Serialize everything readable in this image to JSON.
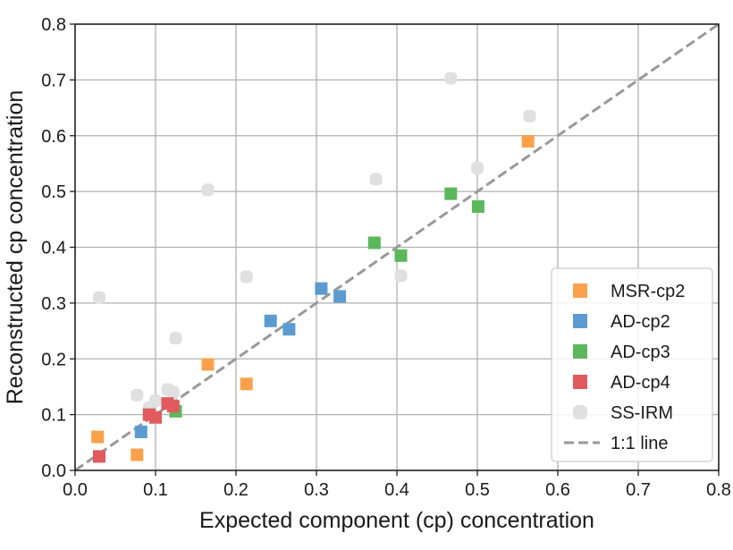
{
  "chart_data": {
    "type": "scatter",
    "title": "",
    "xlabel": "Expected component (cp) concentration",
    "ylabel": "Reconstructed cp concentration",
    "xlim": [
      0.0,
      0.8
    ],
    "ylim": [
      0.0,
      0.8
    ],
    "xticks": [
      "0.0",
      "0.1",
      "0.2",
      "0.3",
      "0.4",
      "0.5",
      "0.6",
      "0.7",
      "0.8"
    ],
    "yticks": [
      "0.0",
      "0.1",
      "0.2",
      "0.3",
      "0.4",
      "0.5",
      "0.6",
      "0.7",
      "0.8"
    ],
    "grid": true,
    "legend_position": "bottom-right",
    "reference_line": {
      "name": "1:1 line",
      "color": "#999999",
      "from": [
        0.0,
        0.0
      ],
      "to": [
        0.8,
        0.8
      ]
    },
    "series": [
      {
        "name": "SS-IRM",
        "color": "#e0e0e0",
        "marker": "circle",
        "points": [
          [
            0.03,
            0.31
          ],
          [
            0.077,
            0.135
          ],
          [
            0.092,
            0.112
          ],
          [
            0.1,
            0.125
          ],
          [
            0.115,
            0.145
          ],
          [
            0.122,
            0.14
          ],
          [
            0.125,
            0.237
          ],
          [
            0.165,
            0.503
          ],
          [
            0.213,
            0.347
          ],
          [
            0.374,
            0.522
          ],
          [
            0.405,
            0.349
          ],
          [
            0.467,
            0.703
          ],
          [
            0.5,
            0.542
          ],
          [
            0.565,
            0.635
          ]
        ]
      },
      {
        "name": "MSR-cp2",
        "color": "#fba14b",
        "marker": "square",
        "points": [
          [
            0.028,
            0.06
          ],
          [
            0.077,
            0.028
          ],
          [
            0.165,
            0.19
          ],
          [
            0.213,
            0.155
          ],
          [
            0.563,
            0.59
          ]
        ]
      },
      {
        "name": "AD-cp2",
        "color": "#5b9bd1",
        "marker": "square",
        "points": [
          [
            0.082,
            0.069
          ],
          [
            0.243,
            0.268
          ],
          [
            0.266,
            0.253
          ],
          [
            0.306,
            0.326
          ],
          [
            0.329,
            0.312
          ]
        ]
      },
      {
        "name": "AD-cp3",
        "color": "#5cb85c",
        "marker": "square",
        "points": [
          [
            0.125,
            0.106
          ],
          [
            0.372,
            0.408
          ],
          [
            0.405,
            0.385
          ],
          [
            0.467,
            0.496
          ],
          [
            0.501,
            0.473
          ]
        ]
      },
      {
        "name": "AD-cp4",
        "color": "#e05a5e",
        "marker": "square",
        "points": [
          [
            0.03,
            0.025
          ],
          [
            0.092,
            0.1
          ],
          [
            0.1,
            0.095
          ],
          [
            0.115,
            0.12
          ],
          [
            0.122,
            0.115
          ]
        ]
      }
    ],
    "legend": [
      "MSR-cp2",
      "AD-cp2",
      "AD-cp3",
      "AD-cp4",
      "SS-IRM",
      "1:1 line"
    ]
  }
}
